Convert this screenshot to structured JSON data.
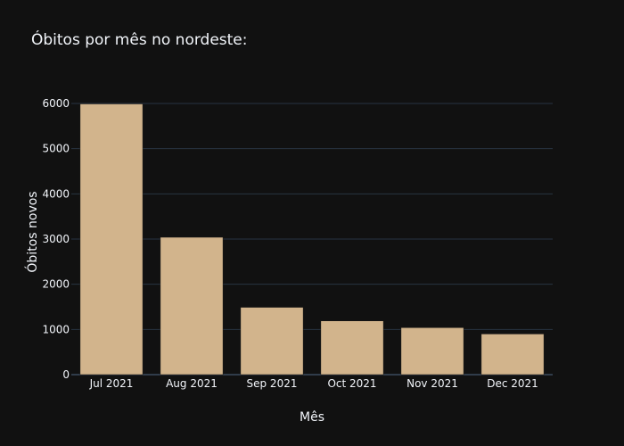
{
  "chart_data": {
    "type": "bar",
    "title": "Óbitos por mês no nordeste:",
    "xlabel": "Mês",
    "ylabel": "Óbitos novos",
    "categories": [
      "Jul 2021",
      "Aug 2021",
      "Sep 2021",
      "Oct 2021",
      "Nov 2021",
      "Dec 2021"
    ],
    "values": [
      5990,
      3040,
      1490,
      1190,
      1040,
      900
    ],
    "ylim": [
      0,
      6000
    ],
    "yticks": [
      0,
      1000,
      2000,
      3000,
      4000,
      5000,
      6000
    ],
    "ytick_labels": [
      "0",
      "1000",
      "2000",
      "3000",
      "4000",
      "5000",
      "6000"
    ],
    "grid": true,
    "legend": "none",
    "colors": {
      "background": "#111111",
      "bar": "#d2b48c",
      "grid": "#283442",
      "zero_line": "#506784",
      "text": "#f2f5fa"
    }
  }
}
